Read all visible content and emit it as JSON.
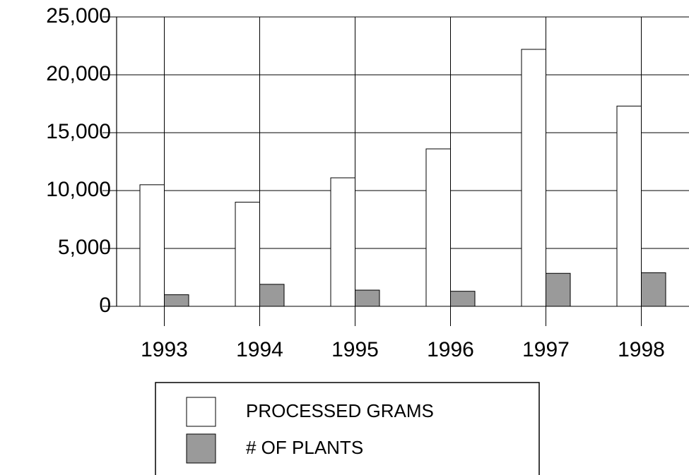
{
  "chart_data": {
    "type": "bar",
    "categories": [
      "1993",
      "1994",
      "1995",
      "1996",
      "1997",
      "1998"
    ],
    "series": [
      {
        "name": "PROCESSED GRAMS",
        "color": "#ffffff",
        "values": [
          10500,
          9000,
          11100,
          13600,
          22200,
          17300
        ]
      },
      {
        "name": "# OF PLANTS",
        "color": "#9a9a9a",
        "values": [
          1000,
          1900,
          1400,
          1300,
          2850,
          2900
        ]
      }
    ],
    "ylim": [
      0,
      25000
    ],
    "yticks": [
      0,
      {
        "value": 5000,
        "label": "5,000"
      },
      {
        "value": 10000,
        "label": "10,000"
      },
      {
        "value": 15000,
        "label": "15,000"
      },
      {
        "value": 20000,
        "label": "20,000"
      },
      {
        "value": 25000,
        "label": "25,000"
      }
    ],
    "grid": true
  }
}
